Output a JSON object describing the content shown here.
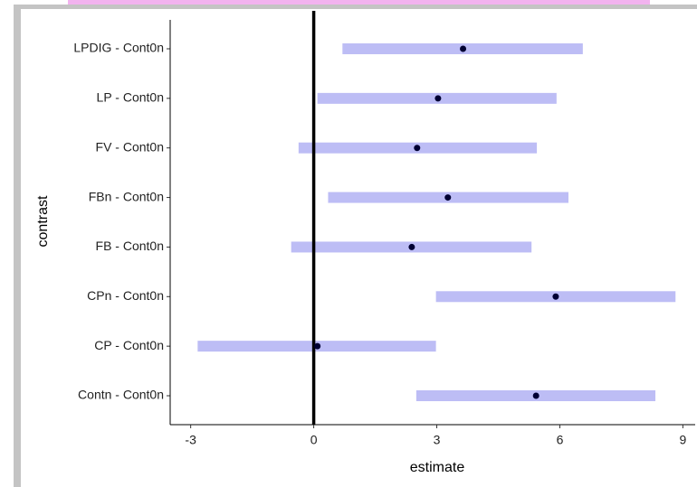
{
  "chart_data": {
    "type": "interval",
    "categories": [
      "Contn - Cont0n",
      "CP - Cont0n",
      "CPn - Cont0n",
      "FB - Cont0n",
      "FBn - Cont0n",
      "FV - Cont0n",
      "LP - Cont0n",
      "LPDIG - Cont0n"
    ],
    "values": [
      5.42,
      0.09,
      5.9,
      2.39,
      3.27,
      2.52,
      3.03,
      3.64
    ],
    "lower": [
      2.5,
      -2.83,
      2.98,
      -0.55,
      0.35,
      -0.37,
      0.09,
      0.7
    ],
    "upper": [
      8.33,
      2.98,
      8.82,
      5.31,
      6.21,
      5.44,
      5.92,
      6.56
    ],
    "interval_color": "#bdbdf5",
    "point_color": "#000033",
    "xlabel": "estimate",
    "ylabel": "contrast",
    "xlim": [
      -3.5,
      9.3
    ],
    "xticks": [
      -3,
      0,
      3,
      6,
      9
    ],
    "vline": 0
  }
}
